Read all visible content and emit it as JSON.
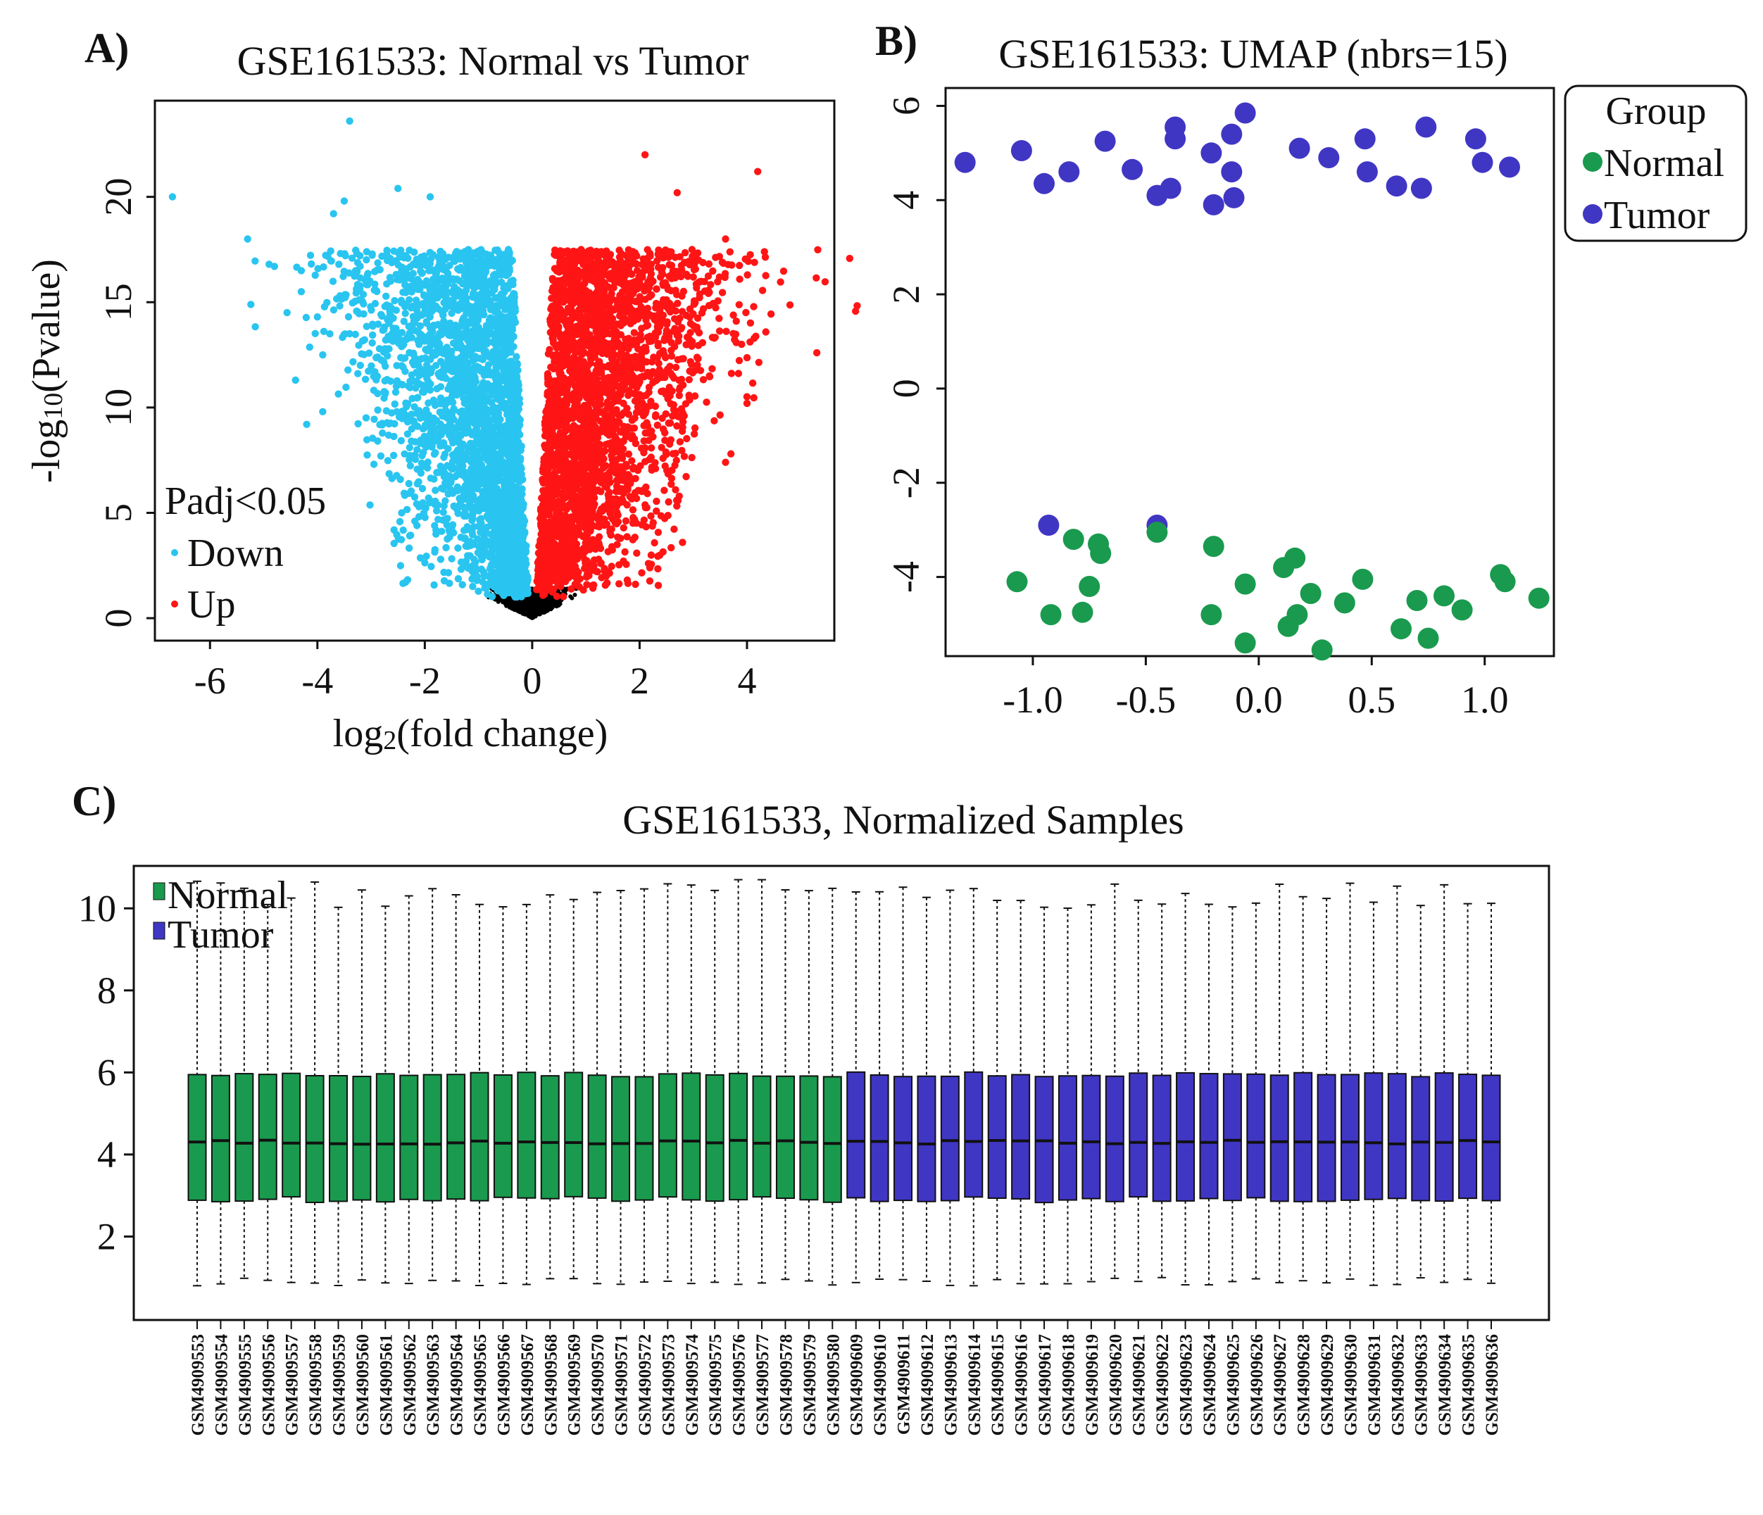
{
  "panels": {
    "a": {
      "label": "A)",
      "title": "GSE161533: Normal vs Tumor",
      "xlabel_pre": "log",
      "xlabel_sub": "2",
      "xlabel_post": "(fold change)",
      "ylabel_pre": "-log",
      "ylabel_sub": "10",
      "ylabel_post": "(Pvalue)",
      "legend_title": "Padj<0.05",
      "legend_down": "Down",
      "legend_up": "Up"
    },
    "b": {
      "label": "B)",
      "title": "GSE161533: UMAP (nbrs=15)",
      "legend_title": "Group",
      "legend_normal": "Normal",
      "legend_tumor": "Tumor"
    },
    "c": {
      "label": "C)",
      "title": "GSE161533, Normalized Samples",
      "legend_normal": "Normal",
      "legend_tumor": "Tumor"
    }
  },
  "colors": {
    "down": "#29c5f0",
    "up": "#ff1515",
    "ns": "#000000",
    "normal": "#1a9a4e",
    "tumor": "#4036c4"
  },
  "chart_data": [
    {
      "id": "volcano",
      "type": "scatter",
      "title": "GSE161533: Normal vs Tumor",
      "xlabel": "log2(fold change)",
      "ylabel": "-log10(Pvalue)",
      "xlim": [
        -7.0,
        5.6
      ],
      "ylim": [
        -1.0,
        24.5
      ],
      "xticks": [
        -6,
        -4,
        -2,
        0,
        2,
        4
      ],
      "yticks": [
        0,
        5,
        10,
        15,
        20
      ],
      "legend_position": "bottom-left",
      "highlight_points": {
        "down": [
          [
            -6.7,
            20.0
          ],
          [
            -5.3,
            18.0
          ],
          [
            -4.9,
            16.8
          ],
          [
            -4.8,
            16.7
          ],
          [
            -4.3,
            16.5
          ],
          [
            -4.3,
            15.5
          ],
          [
            -4.0,
            14.3
          ],
          [
            -3.9,
            12.5
          ],
          [
            -4.2,
            9.2
          ],
          [
            -3.9,
            9.8
          ],
          [
            -3.4,
            23.6
          ],
          [
            -3.5,
            19.8
          ],
          [
            -3.7,
            19.2
          ],
          [
            -2.5,
            20.4
          ],
          [
            -1.9,
            20.0
          ],
          [
            -3.6,
            16.8
          ],
          [
            -3.4,
            13.5
          ],
          [
            -3.2,
            12.0
          ]
        ],
        "up": [
          [
            2.1,
            22.0
          ],
          [
            4.2,
            21.2
          ],
          [
            5.3,
            12.6
          ],
          [
            2.7,
            20.2
          ],
          [
            3.6,
            18.0
          ],
          [
            3.1,
            17.0
          ],
          [
            3.8,
            14.1
          ],
          [
            3.9,
            13.0
          ],
          [
            4.0,
            10.2
          ],
          [
            3.7,
            7.8
          ],
          [
            3.6,
            7.4
          ],
          [
            3.3,
            11.5
          ],
          [
            2.8,
            3.6
          ]
        ]
      },
      "groups": {
        "down": "Down",
        "up": "Up"
      }
    },
    {
      "id": "umap",
      "type": "scatter",
      "title": "GSE161533: UMAP (nbrs=15)",
      "xlim": [
        -1.38,
        1.3
      ],
      "ylim": [
        -5.65,
        6.35
      ],
      "xticks": [
        -1.0,
        -0.5,
        0.0,
        0.5,
        1.0
      ],
      "yticks": [
        -4,
        -2,
        0,
        2,
        4,
        6
      ],
      "legend_position": "outside-top-right",
      "series": [
        {
          "name": "Tumor",
          "points": [
            [
              -1.3,
              4.8
            ],
            [
              -1.05,
              5.05
            ],
            [
              -0.95,
              4.35
            ],
            [
              -0.84,
              4.6
            ],
            [
              -0.68,
              5.25
            ],
            [
              -0.56,
              4.65
            ],
            [
              -0.45,
              4.1
            ],
            [
              -0.39,
              4.25
            ],
            [
              -0.37,
              5.55
            ],
            [
              -0.37,
              5.3
            ],
            [
              -0.21,
              5.0
            ],
            [
              -0.2,
              3.9
            ],
            [
              -0.12,
              5.4
            ],
            [
              -0.12,
              4.6
            ],
            [
              -0.11,
              4.05
            ],
            [
              -0.06,
              5.85
            ],
            [
              0.18,
              5.1
            ],
            [
              0.31,
              4.9
            ],
            [
              0.47,
              5.3
            ],
            [
              0.48,
              4.6
            ],
            [
              0.61,
              4.3
            ],
            [
              0.72,
              4.25
            ],
            [
              0.74,
              5.55
            ],
            [
              0.96,
              5.3
            ],
            [
              0.99,
              4.8
            ],
            [
              1.11,
              4.7
            ],
            [
              -0.93,
              -2.9
            ],
            [
              -0.45,
              -2.9
            ]
          ]
        },
        {
          "name": "Normal",
          "points": [
            [
              -1.07,
              -4.1
            ],
            [
              -0.92,
              -4.8
            ],
            [
              -0.82,
              -3.2
            ],
            [
              -0.78,
              -4.75
            ],
            [
              -0.75,
              -4.2
            ],
            [
              -0.71,
              -3.3
            ],
            [
              -0.7,
              -3.5
            ],
            [
              -0.45,
              -3.05
            ],
            [
              -0.2,
              -3.35
            ],
            [
              -0.21,
              -4.8
            ],
            [
              -0.06,
              -4.15
            ],
            [
              -0.06,
              -5.4
            ],
            [
              0.11,
              -3.8
            ],
            [
              0.16,
              -3.6
            ],
            [
              0.13,
              -5.05
            ],
            [
              0.17,
              -4.8
            ],
            [
              0.23,
              -4.35
            ],
            [
              0.28,
              -5.55
            ],
            [
              0.38,
              -4.55
            ],
            [
              0.46,
              -4.05
            ],
            [
              0.63,
              -5.1
            ],
            [
              0.7,
              -4.5
            ],
            [
              0.75,
              -5.3
            ],
            [
              0.82,
              -4.4
            ],
            [
              0.9,
              -4.7
            ],
            [
              1.07,
              -3.95
            ],
            [
              1.09,
              -4.1
            ],
            [
              1.24,
              -4.45
            ]
          ]
        }
      ]
    },
    {
      "id": "boxplot",
      "type": "box",
      "title": "GSE161533, Normalized Samples",
      "ylim": [
        0.0,
        11.0
      ],
      "yticks": [
        2,
        4,
        6,
        8,
        10
      ],
      "legend_position": "top-left",
      "normal_samples": [
        "GSM4909553",
        "GSM4909554",
        "GSM4909555",
        "GSM4909556",
        "GSM4909557",
        "GSM4909558",
        "GSM4909559",
        "GSM4909560",
        "GSM4909561",
        "GSM4909562",
        "GSM4909563",
        "GSM4909564",
        "GSM4909565",
        "GSM4909566",
        "GSM4909567",
        "GSM4909568",
        "GSM4909569",
        "GSM4909570",
        "GSM4909571",
        "GSM4909572",
        "GSM4909573",
        "GSM4909574",
        "GSM4909575",
        "GSM4909576",
        "GSM4909577",
        "GSM4909578",
        "GSM4909579",
        "GSM4909580"
      ],
      "tumor_samples": [
        "GSM4909609",
        "GSM4909610",
        "GSM4909611",
        "GSM4909612",
        "GSM4909613",
        "GSM4909614",
        "GSM4909615",
        "GSM4909616",
        "GSM4909617",
        "GSM4909618",
        "GSM4909619",
        "GSM4909620",
        "GSM4909621",
        "GSM4909622",
        "GSM4909623",
        "GSM4909624",
        "GSM4909625",
        "GSM4909626",
        "GSM4909627",
        "GSM4909628",
        "GSM4909629",
        "GSM4909630",
        "GSM4909631",
        "GSM4909632",
        "GSM4909633",
        "GSM4909634",
        "GSM4909635",
        "GSM4909636"
      ],
      "q1_median_q3": [
        2.9,
        4.3,
        5.95
      ],
      "whisker_low": 0.9,
      "whisker_high_range": [
        10.0,
        10.7
      ]
    }
  ]
}
